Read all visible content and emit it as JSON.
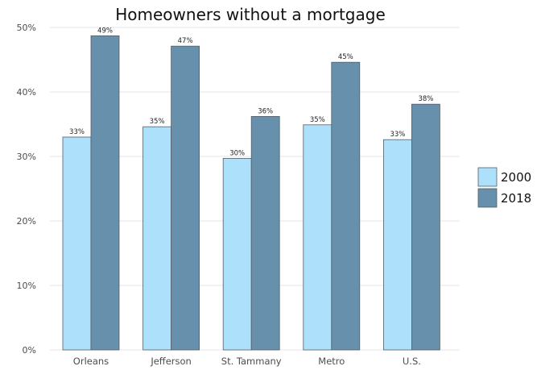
{
  "chart_data": {
    "type": "bar",
    "title": "Homeowners without a mortgage",
    "xlabel": "",
    "ylabel": "",
    "categories": [
      "Orleans",
      "Jefferson",
      "St. Tammany",
      "Metro",
      "U.S."
    ],
    "series": [
      {
        "name": "2000",
        "color": "#ade0fb",
        "values": [
          0.33,
          0.346,
          0.297,
          0.349,
          0.326
        ],
        "labels": [
          "33%",
          "35%",
          "30%",
          "35%",
          "33%"
        ]
      },
      {
        "name": "2018",
        "color": "#6690ab",
        "values": [
          0.487,
          0.471,
          0.362,
          0.446,
          0.381
        ],
        "labels": [
          "49%",
          "47%",
          "36%",
          "45%",
          "38%"
        ]
      }
    ],
    "ylim": [
      0,
      0.5
    ],
    "yticks": [
      0,
      0.1,
      0.2,
      0.3,
      0.4,
      0.5
    ],
    "ytick_labels": [
      "0%",
      "10%",
      "20%",
      "30%",
      "40%",
      "50%"
    ],
    "grid": true,
    "legend_position": "right"
  }
}
